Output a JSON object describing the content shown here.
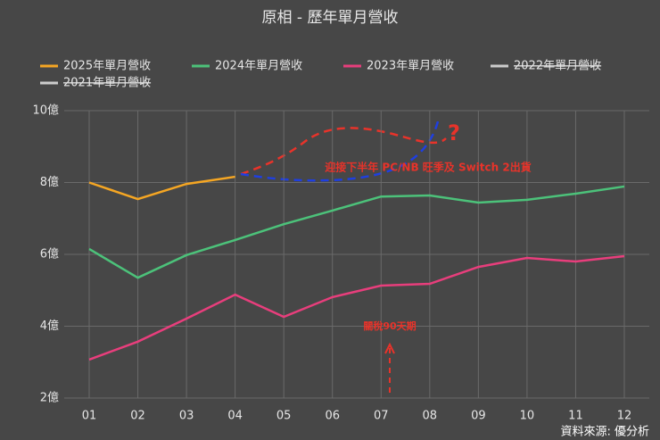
{
  "chart_data": {
    "type": "line",
    "title": "原相 - 歷年單月營收",
    "categories": [
      "01",
      "02",
      "03",
      "04",
      "05",
      "06",
      "07",
      "08",
      "09",
      "10",
      "11",
      "12"
    ],
    "series": [
      {
        "name": "2025年單月營收",
        "color": "#f5a623",
        "values": [
          8.0,
          7.54,
          7.96,
          8.16,
          null,
          null,
          null,
          null,
          null,
          null,
          null,
          null
        ]
      },
      {
        "name": "2024年單月營收",
        "color": "#4cc27a",
        "values": [
          6.15,
          5.35,
          5.98,
          6.4,
          6.84,
          7.22,
          7.61,
          7.64,
          7.44,
          7.52,
          7.69,
          7.89
        ]
      },
      {
        "name": "2023年單月營收",
        "color": "#e83e7c",
        "values": [
          3.07,
          3.57,
          4.21,
          4.88,
          4.26,
          4.81,
          5.13,
          5.18,
          5.65,
          5.9,
          5.8,
          5.95
        ]
      },
      {
        "name": "2022年單月營收",
        "color": "#cccccc",
        "hidden": true,
        "values": [
          null,
          null,
          null,
          null,
          null,
          null,
          null,
          null,
          null,
          null,
          null,
          null
        ]
      },
      {
        "name": "2021年單月營收",
        "color": "#cccccc",
        "hidden": true,
        "values": [
          null,
          null,
          null,
          null,
          null,
          null,
          null,
          null,
          null,
          null,
          null,
          null
        ]
      }
    ],
    "ylim": [
      2,
      10
    ],
    "yticks": [
      {
        "value": 2,
        "label": "2億"
      },
      {
        "value": 4,
        "label": "4億"
      },
      {
        "value": 6,
        "label": "6億"
      },
      {
        "value": 8,
        "label": "8億"
      },
      {
        "value": 10,
        "label": "10億"
      }
    ],
    "grid": true,
    "legend": "top",
    "annotations": [
      "迎接下半年 PC/NB 旺季及 Switch 2出貨",
      "關稅90天期",
      "?"
    ],
    "source": "資料來源: 優分析"
  }
}
